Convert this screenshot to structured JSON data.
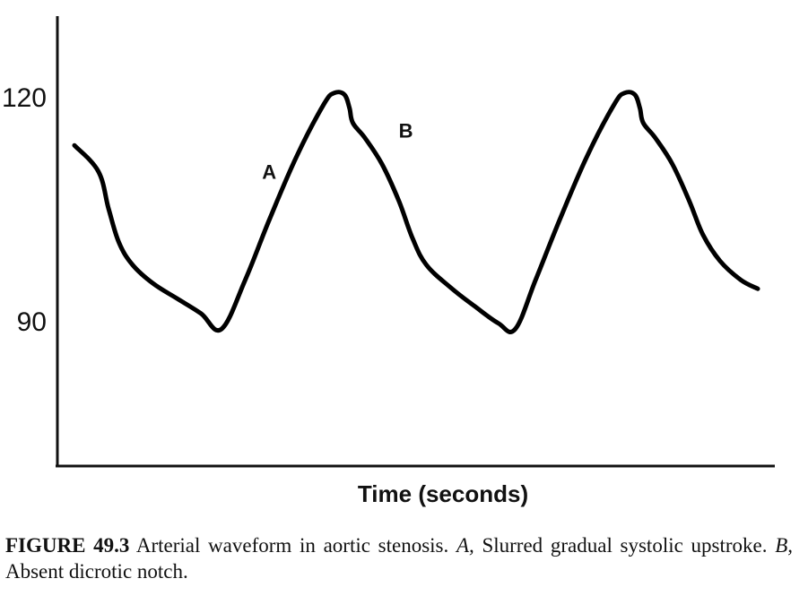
{
  "chart_data": {
    "type": "line",
    "title": "",
    "xlabel": "Time (seconds)",
    "ylabel": "",
    "ylim": [
      70,
      130
    ],
    "xlim": [
      0,
      2.1
    ],
    "y_ticks": [
      {
        "value": 120,
        "label": "120"
      },
      {
        "value": 90,
        "label": "90"
      }
    ],
    "grid": false,
    "legend": "none",
    "line_color": "#000000",
    "series": [
      {
        "points": [
          [
            0.05,
            113.5
          ],
          [
            0.12,
            110.0
          ],
          [
            0.15,
            105.0
          ],
          [
            0.18,
            100.5
          ],
          [
            0.22,
            97.5
          ],
          [
            0.28,
            95.0
          ],
          [
            0.35,
            93.0
          ],
          [
            0.42,
            91.0
          ],
          [
            0.48,
            88.9
          ],
          [
            0.55,
            95.5
          ],
          [
            0.62,
            103.5
          ],
          [
            0.7,
            112.0
          ],
          [
            0.78,
            119.0
          ],
          [
            0.81,
            120.5
          ],
          [
            0.84,
            120.3
          ],
          [
            0.855,
            118.5
          ],
          [
            0.865,
            116.5
          ],
          [
            0.9,
            114.5
          ],
          [
            0.95,
            111.0
          ],
          [
            1.0,
            106.0
          ],
          [
            1.04,
            101.0
          ],
          [
            1.08,
            97.5
          ],
          [
            1.15,
            94.5
          ],
          [
            1.22,
            92.0
          ],
          [
            1.29,
            89.7
          ],
          [
            1.34,
            88.9
          ],
          [
            1.4,
            95.5
          ],
          [
            1.47,
            103.5
          ],
          [
            1.55,
            112.0
          ],
          [
            1.63,
            119.0
          ],
          [
            1.66,
            120.5
          ],
          [
            1.69,
            120.3
          ],
          [
            1.705,
            118.5
          ],
          [
            1.715,
            116.5
          ],
          [
            1.75,
            114.5
          ],
          [
            1.8,
            111.0
          ],
          [
            1.85,
            106.0
          ],
          [
            1.89,
            101.5
          ],
          [
            1.94,
            98.0
          ],
          [
            2.0,
            95.5
          ],
          [
            2.05,
            94.3
          ]
        ]
      }
    ],
    "annotations": [
      {
        "label": "A",
        "x": 0.62,
        "y": 110.0
      },
      {
        "label": "B",
        "x": 1.02,
        "y": 115.5
      }
    ]
  },
  "caption": {
    "label": "FIGURE 49.3",
    "text1": " Arterial waveform in aortic stenosis. ",
    "a_letter": "A,",
    "text2": " Slurred gradual systolic upstroke. ",
    "b_letter": "B,",
    "text3": " Absent dicrotic notch."
  }
}
